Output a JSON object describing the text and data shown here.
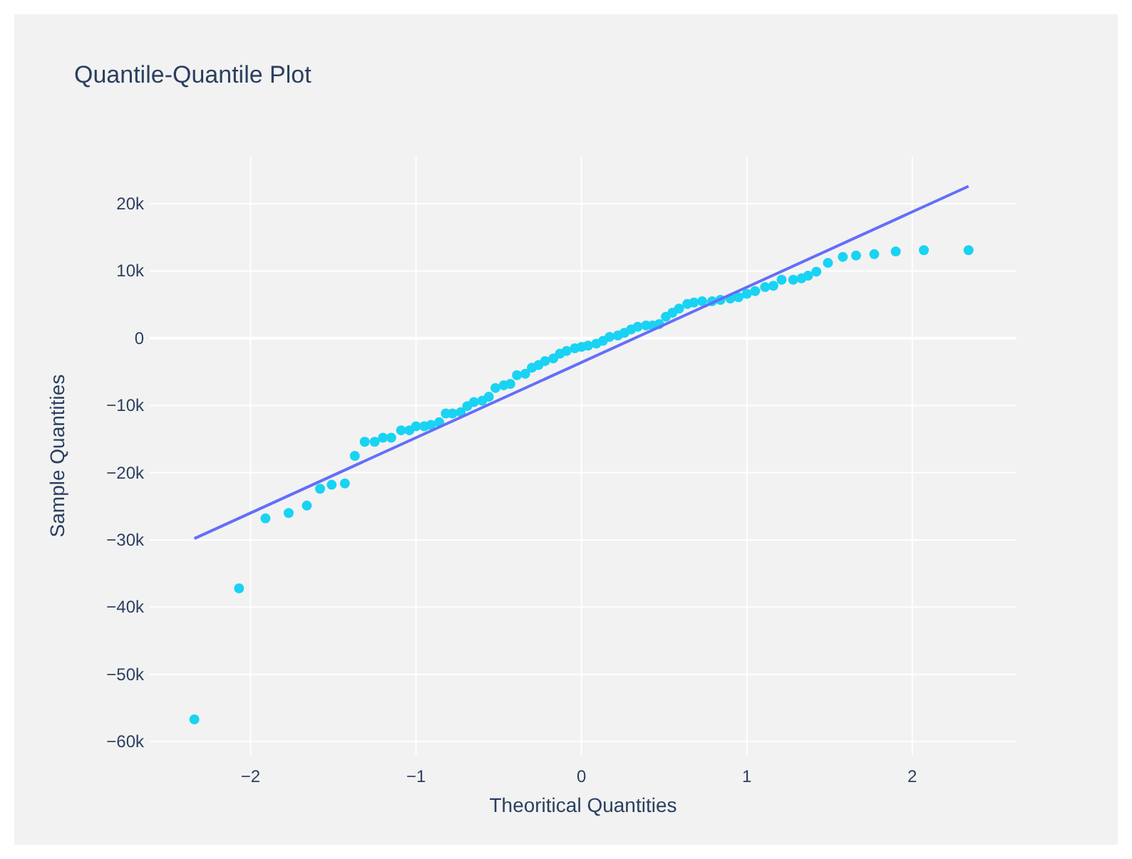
{
  "chart_data": {
    "type": "scatter",
    "title": "Quantile-Quantile Plot",
    "xlabel": "Theoritical Quantities",
    "ylabel": "Sample Quantities",
    "xlim": [
      -2.61,
      2.63
    ],
    "ylim": [
      -62000,
      27000
    ],
    "xticks": [
      {
        "value": -2,
        "label": "−2"
      },
      {
        "value": -1,
        "label": "−1"
      },
      0,
      1,
      2
    ],
    "yticks": [
      {
        "value": -60000,
        "label": "−60k"
      },
      {
        "value": -50000,
        "label": "−50k"
      },
      {
        "value": -40000,
        "label": "−40k"
      },
      {
        "value": -30000,
        "label": "−30k"
      },
      {
        "value": -20000,
        "label": "−20k"
      },
      {
        "value": -10000,
        "label": "−10k"
      },
      0,
      {
        "value": 10000,
        "label": "10k"
      },
      {
        "value": 20000,
        "label": "20k"
      }
    ],
    "grid": true,
    "series": [
      {
        "color": "#19d3f3",
        "marker": "circle",
        "x": [
          -2.34,
          -2.07,
          -1.91,
          -1.77,
          -1.66,
          -1.58,
          -1.51,
          -1.43,
          -1.37,
          -1.31,
          -1.25,
          -1.2,
          -1.15,
          -1.09,
          -1.04,
          -1.0,
          -0.95,
          -0.91,
          -0.86,
          -0.82,
          -0.78,
          -0.73,
          -0.69,
          -0.65,
          -0.6,
          -0.56,
          -0.52,
          -0.47,
          -0.43,
          -0.39,
          -0.34,
          -0.3,
          -0.26,
          -0.22,
          -0.17,
          -0.13,
          -0.09,
          -0.04,
          0.0,
          0.04,
          0.09,
          0.13,
          0.17,
          0.22,
          0.26,
          0.3,
          0.34,
          0.39,
          0.43,
          0.47,
          0.51,
          0.55,
          0.59,
          0.64,
          0.68,
          0.73,
          0.79,
          0.84,
          0.9,
          0.95,
          1.0,
          1.05,
          1.11,
          1.16,
          1.21,
          1.28,
          1.33,
          1.37,
          1.42,
          1.49,
          1.58,
          1.66,
          1.77,
          1.9,
          2.07,
          2.34
        ],
        "values": [
          -56700,
          -37200,
          -26800,
          -26000,
          -24900,
          -22400,
          -21800,
          -21600,
          -17500,
          -15400,
          -15400,
          -14800,
          -14800,
          -13700,
          -13700,
          -13100,
          -13100,
          -12900,
          -12500,
          -11200,
          -11200,
          -11000,
          -10100,
          -9500,
          -9300,
          -8700,
          -7400,
          -7000,
          -6800,
          -5500,
          -5300,
          -4400,
          -4000,
          -3400,
          -3000,
          -2300,
          -1900,
          -1500,
          -1300,
          -1100,
          -800,
          -400,
          200,
          400,
          800,
          1300,
          1700,
          1900,
          1900,
          2100,
          3200,
          3800,
          4400,
          5100,
          5300,
          5500,
          5500,
          5700,
          5900,
          6100,
          6600,
          7000,
          7600,
          7800,
          8700,
          8700,
          8900,
          9300,
          9900,
          11200,
          12100,
          12300,
          12500,
          12900,
          13100,
          13100
        ]
      },
      {
        "type": "line",
        "color": "#636efa",
        "line_style": "solid",
        "x": [
          -2.34,
          2.34
        ],
        "values": [
          -29800,
          22600
        ]
      }
    ]
  }
}
